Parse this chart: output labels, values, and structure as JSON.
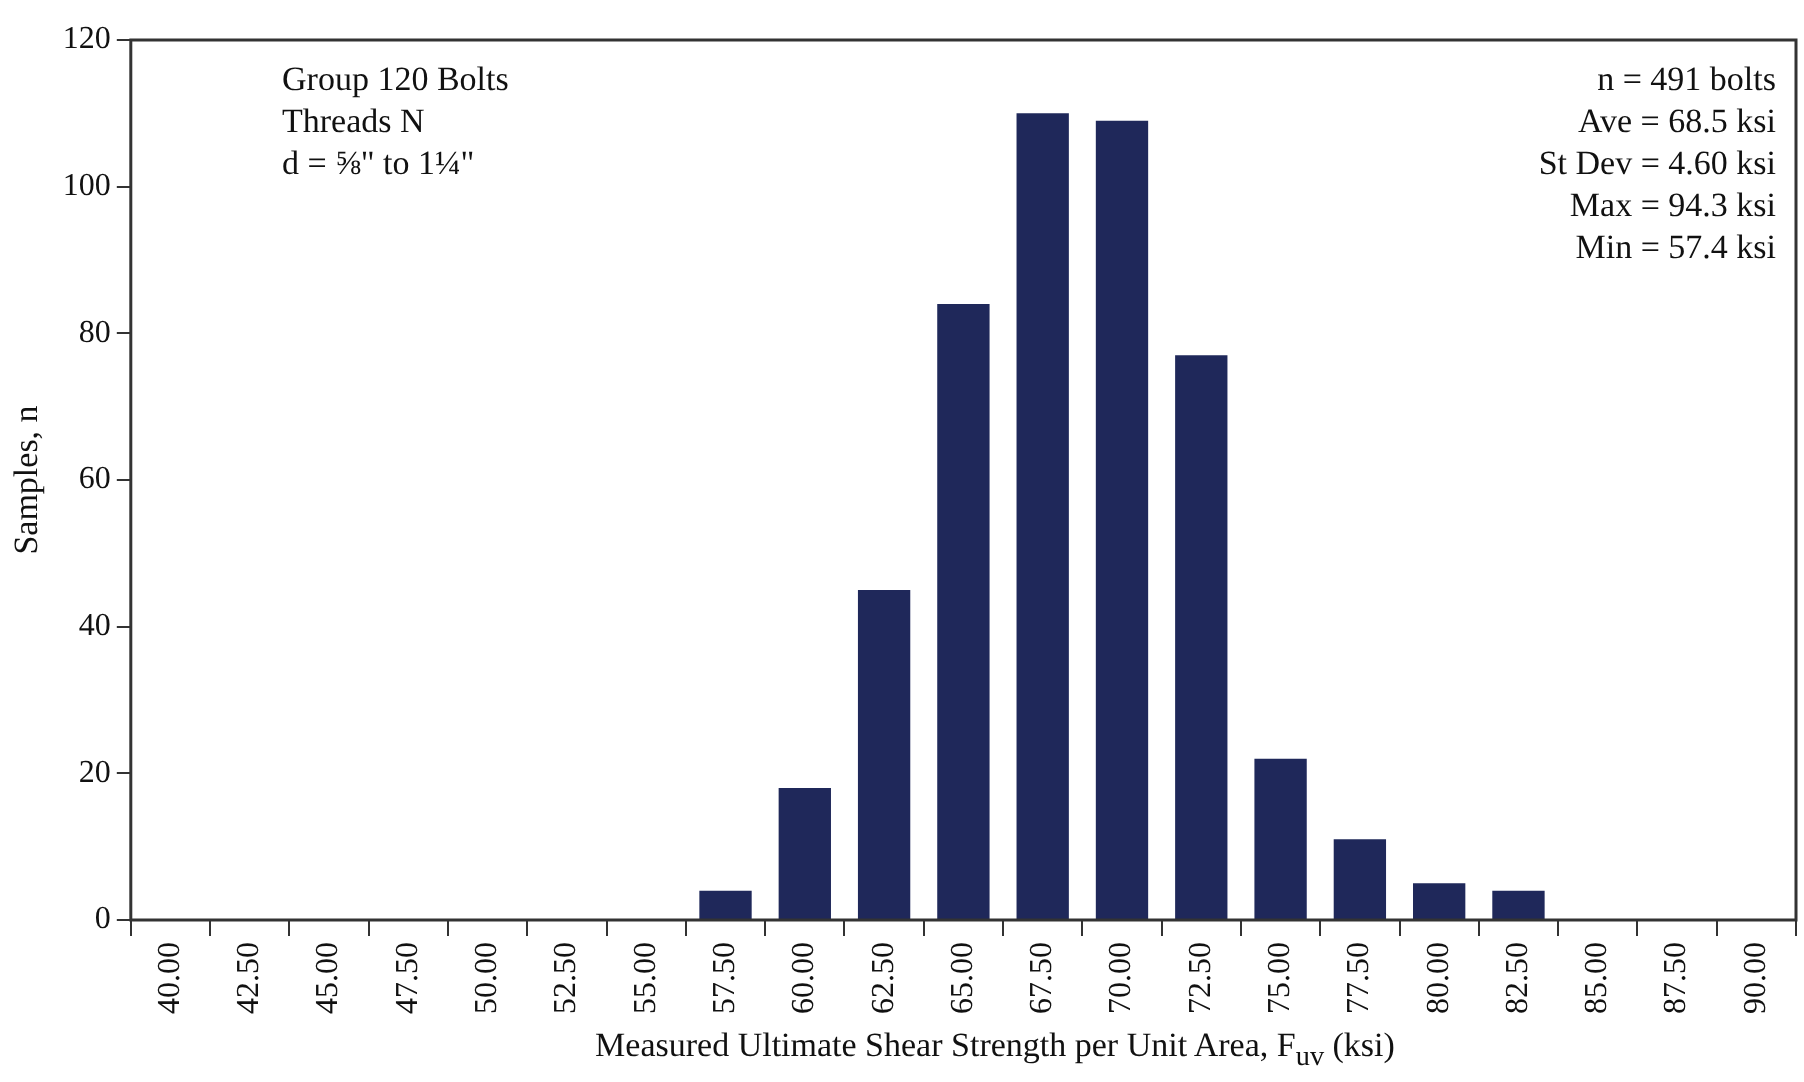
{
  "chart_data": {
    "type": "bar",
    "xlabel": "Measured Ultimate Shear Strength per Unit Area, F$_{uv}$ (ksi)",
    "ylabel": "Samples, n",
    "categories": [
      "40.00",
      "42.50",
      "45.00",
      "47.50",
      "50.00",
      "52.50",
      "55.00",
      "57.50",
      "60.00",
      "62.50",
      "65.00",
      "67.50",
      "70.00",
      "72.50",
      "75.00",
      "77.50",
      "80.00",
      "82.50",
      "85.00",
      "87.50",
      "90.00"
    ],
    "values": [
      0,
      0,
      0,
      0,
      0,
      0,
      0,
      4,
      18,
      45,
      84,
      110,
      109,
      77,
      22,
      11,
      5,
      4,
      0,
      0,
      0
    ],
    "color": "#1f285a",
    "ylim": [
      0,
      120
    ],
    "yticks": [
      0,
      20,
      40,
      60,
      80,
      100,
      120
    ],
    "grid": false,
    "legend": false,
    "annotations": [
      "Group 120 Bolts\nThreads N\nd = ⅝\" to 1¼\"",
      "n = 491 bolts\nAve = 68.5 ksi\nSt Dev = 4.60 ksi\nMax = 94.3 ksi\nMin = 57.4 ksi"
    ]
  }
}
